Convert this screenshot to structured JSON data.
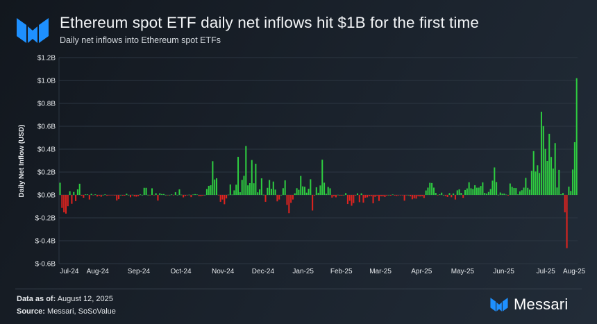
{
  "header": {
    "title": "Ethereum spot ETF daily net inflows hit $1B for the first time",
    "subtitle": "Daily net inflows into Ethereum spot ETFs"
  },
  "footer": {
    "data_as_of_label": "Data as of:",
    "data_as_of_value": "August 12, 2025",
    "source_label": "Source:",
    "source_value": "Messari, SoSoValue",
    "brand": "Messari"
  },
  "colors": {
    "positive": "#2ecc40",
    "negative": "#e0231f",
    "brand": "#1e90ff",
    "grid": "#2c3642"
  },
  "chart_data": {
    "type": "bar",
    "title": "",
    "xlabel": "",
    "ylabel": "Daily Net Inflow (USD)",
    "unit": "USD millions",
    "ylim": [
      -600,
      1200
    ],
    "y_ticks": [
      1200,
      1000,
      800,
      600,
      400,
      200,
      0,
      -200,
      -400,
      -600
    ],
    "y_tick_labels": [
      "$1.2B",
      "$1.0B",
      "$0.8B",
      "$0.6B",
      "$0.4B",
      "$0.2B",
      "$0.0B",
      "$-0.2B",
      "$-0.4B",
      "$-0.6B"
    ],
    "grid": "horizontal",
    "months": [
      {
        "label": "Jul-24",
        "values": [
          107,
          -113,
          -152,
          -163,
          -98,
          33,
          -77
        ]
      },
      {
        "label": "Aug-24",
        "values": [
          26,
          -54,
          49,
          98,
          -7,
          -24,
          5,
          5,
          -40,
          10,
          -3,
          5,
          -13,
          -6,
          -16,
          0,
          5,
          -7,
          -3,
          -3,
          -1,
          -5
        ]
      },
      {
        "label": "Sep-24",
        "values": [
          -48,
          -37,
          0,
          -6,
          -6,
          11,
          0,
          -20,
          1,
          -13,
          -15,
          -10,
          5,
          0,
          62,
          62,
          0,
          -1,
          58,
          -1
        ]
      },
      {
        "label": "Oct-24",
        "values": [
          15,
          -49,
          15,
          8,
          8,
          0,
          -1,
          0,
          5,
          -3,
          24,
          0,
          49,
          2,
          -21,
          -9,
          -2,
          2,
          -19,
          4,
          7,
          4,
          -10
        ]
      },
      {
        "label": "Nov-24",
        "values": [
          -11,
          -7,
          0,
          52,
          79,
          85,
          295,
          135,
          146,
          -3,
          -60,
          -40,
          -81,
          -30,
          2,
          92,
          3,
          40,
          90,
          333
        ]
      },
      {
        "label": "Dec-24",
        "values": [
          24,
          132,
          167,
          428,
          84,
          103,
          305,
          102,
          273,
          23,
          49,
          145,
          2,
          -60,
          62,
          131,
          54,
          117,
          47,
          -56,
          -40
        ]
      },
      {
        "label": "Jan-25",
        "values": [
          0,
          59,
          128,
          -87,
          -159,
          -69,
          -40,
          14,
          59,
          45,
          166,
          75,
          72,
          20,
          54,
          137,
          -136,
          -5,
          67,
          19
        ]
      },
      {
        "label": "Feb-25",
        "values": [
          83,
          308,
          107,
          11,
          70,
          58,
          -23,
          -12,
          -21,
          1,
          -6,
          -6,
          0,
          16,
          -79,
          -51,
          -94,
          -71,
          -5
        ]
      },
      {
        "label": "Mar-25",
        "values": [
          14,
          -63,
          14,
          -67,
          -24,
          -21,
          -10,
          -11,
          -73,
          -17,
          -7,
          -52,
          -12,
          -12,
          -18,
          -6,
          0,
          -6,
          4,
          -5,
          -8
        ]
      },
      {
        "label": "Apr-25",
        "values": [
          -4,
          -3,
          -1,
          -50,
          -3,
          0,
          -12,
          -38,
          -29,
          -32,
          -11,
          -13,
          -11,
          -26,
          39,
          64,
          106,
          104,
          64,
          18,
          -3
        ]
      },
      {
        "label": "May-25",
        "values": [
          6,
          20,
          0,
          -9,
          -18,
          16,
          -20,
          13,
          -40,
          40,
          49,
          18,
          -25,
          43,
          57,
          111,
          58,
          52,
          85,
          63,
          64
        ]
      },
      {
        "label": "Jun-25",
        "values": [
          78,
          110,
          18,
          12,
          26,
          52,
          125,
          240,
          113,
          1,
          21,
          12,
          12,
          3,
          -5,
          100,
          71,
          61,
          60,
          5,
          31
        ]
      },
      {
        "label": "Jul-25",
        "values": [
          41,
          64,
          149,
          62,
          46,
          211,
          383,
          205,
          259,
          192,
          727,
          602,
          402,
          297,
          534,
          332,
          231,
          453,
          65,
          219,
          6,
          17
        ]
      },
      {
        "label": "Aug-25",
        "values": [
          -152,
          -465,
          73,
          35,
          222,
          461,
          1020
        ]
      }
    ]
  }
}
